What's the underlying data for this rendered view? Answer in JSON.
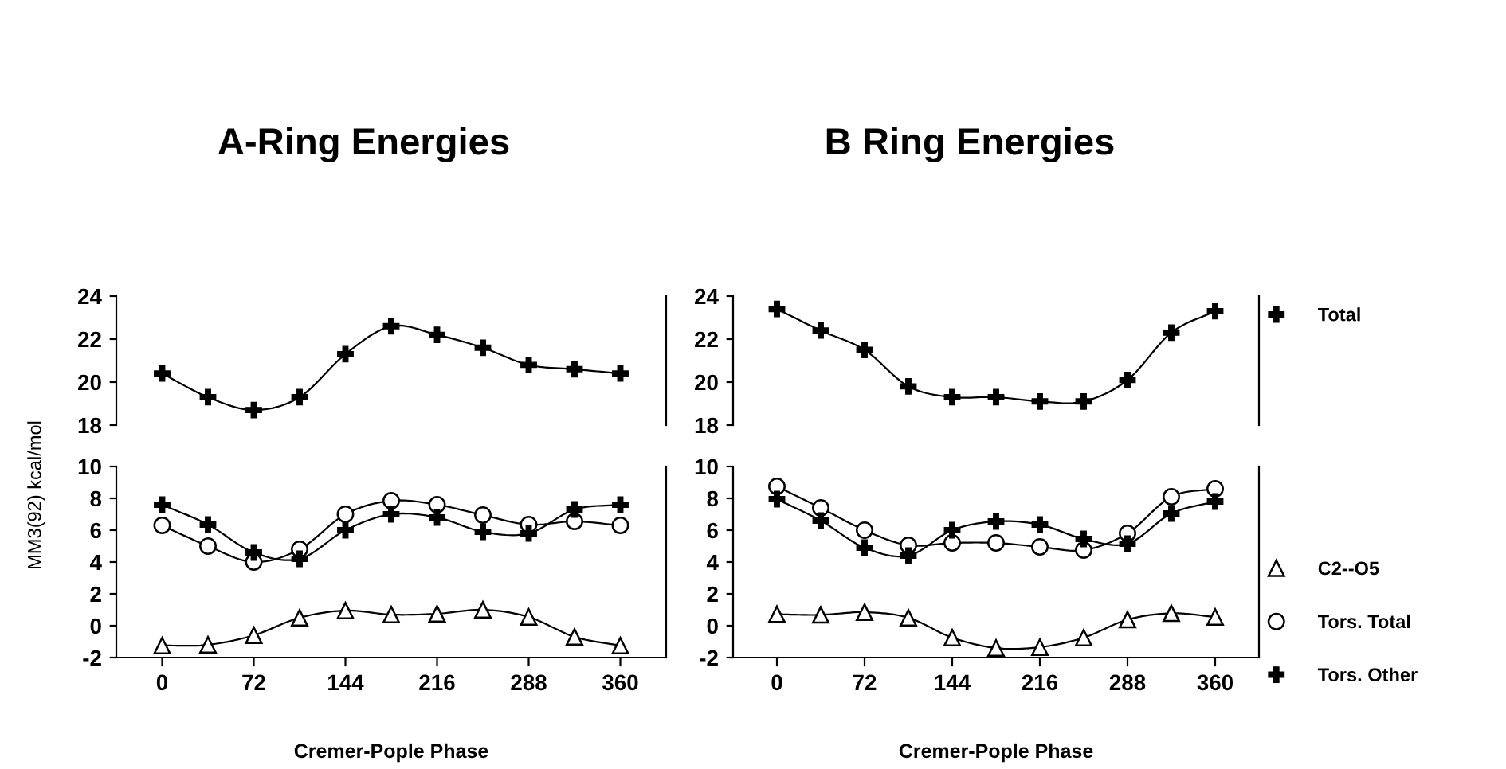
{
  "chart_data": [
    {
      "type": "line",
      "title": "A-Ring Energies",
      "x": [
        0,
        36,
        72,
        108,
        144,
        180,
        216,
        252,
        288,
        324,
        360
      ],
      "xlim": [
        -36,
        396
      ],
      "ylim": [
        18,
        24
      ],
      "yticks": [
        18,
        20,
        22,
        24
      ],
      "tick_labels": "y",
      "marker": "cross",
      "series": [
        {
          "color": "#000000",
          "values": [
            20.4,
            19.3,
            18.7,
            19.3,
            21.3,
            22.6,
            22.2,
            21.6,
            20.8,
            20.6,
            20.4
          ]
        }
      ]
    },
    {
      "type": "line",
      "xlabel": "Cremer-Pople Phase",
      "ylabel": "MM3(92) kcal/mol",
      "x": [
        0,
        36,
        72,
        108,
        144,
        180,
        216,
        252,
        288,
        324,
        360
      ],
      "xlim": [
        -36,
        396
      ],
      "xticks": [
        0,
        72,
        144,
        216,
        288,
        360
      ],
      "ylim": [
        -2,
        10
      ],
      "yticks": [
        -2,
        0,
        2,
        4,
        6,
        8,
        10
      ],
      "series": [
        {
          "color": "#000000",
          "marker": "triangle",
          "values": [
            -1.25,
            -1.2,
            -0.6,
            0.5,
            0.95,
            0.7,
            0.75,
            1.0,
            0.55,
            -0.7,
            -1.25
          ]
        },
        {
          "color": "#000000",
          "marker": "circle",
          "values": [
            6.3,
            5.0,
            4.0,
            4.8,
            7.0,
            7.85,
            7.6,
            6.95,
            6.35,
            6.55,
            6.3
          ]
        },
        {
          "color": "#000000",
          "marker": "cross",
          "values": [
            7.6,
            6.35,
            4.6,
            4.2,
            6.0,
            7.0,
            6.8,
            5.9,
            5.8,
            7.3,
            7.6
          ]
        }
      ]
    },
    {
      "type": "line",
      "title": "B Ring Energies",
      "x": [
        0,
        36,
        72,
        108,
        144,
        180,
        216,
        252,
        288,
        324,
        360
      ],
      "xlim": [
        -36,
        396
      ],
      "ylim": [
        18,
        24
      ],
      "yticks": [
        18,
        20,
        22,
        24
      ],
      "tick_labels": "y",
      "marker": "cross",
      "legend": "right",
      "series": [
        {
          "name": "Total",
          "color": "#000000",
          "values": [
            23.4,
            22.4,
            21.5,
            19.8,
            19.3,
            19.3,
            19.1,
            19.1,
            20.1,
            22.3,
            23.3
          ]
        }
      ]
    },
    {
      "type": "line",
      "xlabel": "Cremer-Pople Phase",
      "x": [
        0,
        36,
        72,
        108,
        144,
        180,
        216,
        252,
        288,
        324,
        360
      ],
      "xlim": [
        -36,
        396
      ],
      "xticks": [
        0,
        72,
        144,
        216,
        288,
        360
      ],
      "ylim": [
        -2,
        10
      ],
      "yticks": [
        -2,
        0,
        2,
        4,
        6,
        8,
        10
      ],
      "legend": "right",
      "series": [
        {
          "name": "C2--O5",
          "color": "#000000",
          "marker": "triangle",
          "values": [
            0.72,
            0.68,
            0.85,
            0.5,
            -0.75,
            -1.4,
            -1.35,
            -0.75,
            0.38,
            0.78,
            0.55
          ]
        },
        {
          "name": "Tors. Total",
          "color": "#000000",
          "marker": "circle",
          "values": [
            8.75,
            7.4,
            6.0,
            5.05,
            5.2,
            5.2,
            4.95,
            4.75,
            5.8,
            8.1,
            8.6
          ]
        },
        {
          "name": "Tors. Other",
          "color": "#000000",
          "marker": "cross",
          "values": [
            7.95,
            6.6,
            4.9,
            4.4,
            6.0,
            6.55,
            6.35,
            5.45,
            5.15,
            7.05,
            7.8
          ]
        }
      ]
    }
  ]
}
